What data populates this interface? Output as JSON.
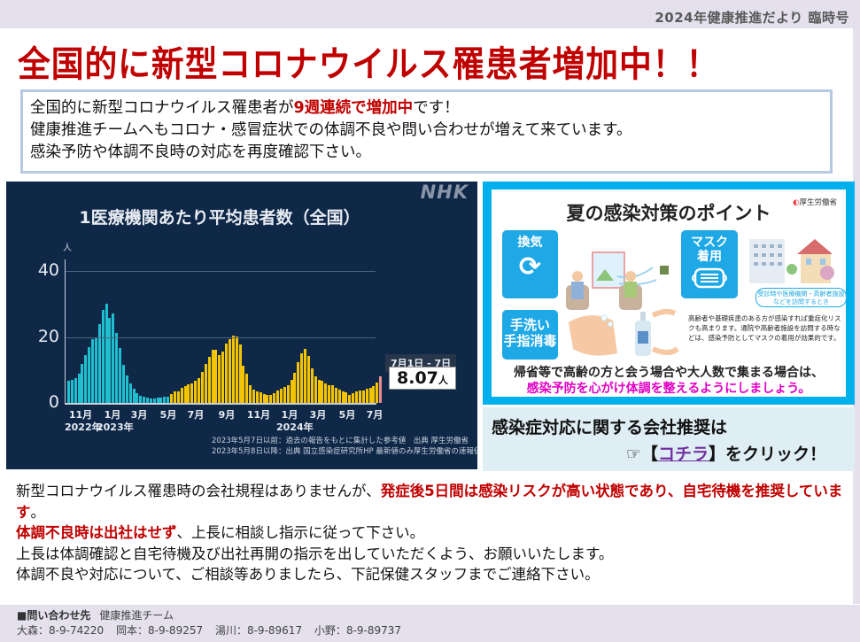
{
  "header": {
    "issue_label": "2024年健康推進だより 臨時号",
    "headline": "全国的に新型コロナウイルス罹患者増加中！！"
  },
  "summary": {
    "line1_pre": "全国的に新型コロナウイルス罹患者が",
    "line1_emph": "9週連続で増加中",
    "line1_post": "です！",
    "line2": "健康推進チームへもコロナ・感冒症状での体調不良や問い合わせが増えて来ています。",
    "line3": "感染予防や体調不良時の対応を再度確認下さい。"
  },
  "chart_panel": {
    "brand": "NHK",
    "footnote1": "2023年5月7日以前：過去の報告をもとに集計した参考値　出典 厚生労働省",
    "footnote2": "2023年5月8日以降：出典 国立感染症研究所HP 最新値のみ厚生労働省の速報値",
    "callout_date": "7月1日 - 7日",
    "callout_value": "8.07",
    "callout_unit": "人"
  },
  "chart_data": {
    "type": "bar",
    "title": "1医療機関あたり平均患者数（全国）",
    "xlabel": "",
    "ylabel": "人",
    "ylim": [
      0,
      40
    ],
    "yticks": [
      0,
      20,
      40
    ],
    "grid": true,
    "legend": "none",
    "x_tick_labels": [
      "11月",
      "1月",
      "3月",
      "5月",
      "7月",
      "9月",
      "11月",
      "1月",
      "3月",
      "5月",
      "7月"
    ],
    "x_year_labels": [
      "2022年",
      "2023年",
      "2024年"
    ],
    "period": "weekly, 2022年10月 〜 2024年7月1日-7日",
    "series": [
      {
        "name": "過去の報告をもとに集計した参考値（〜2023年5月7日）",
        "color": "#1fbfcf",
        "values": [
          6.8,
          7.0,
          7.4,
          8.8,
          11.8,
          14.4,
          17.0,
          19.4,
          20.0,
          23.8,
          28.3,
          30.0,
          25.8,
          27.2,
          21.3,
          16.8,
          11.6,
          8.3,
          5.9,
          4.3,
          2.9,
          2.2,
          1.8,
          1.5,
          1.4,
          1.4,
          1.5,
          1.7,
          1.8,
          1.8
        ]
      },
      {
        "name": "国立感染症研究所（2023年5月8日〜）",
        "color": "#f5c400",
        "values": [
          2.6,
          3.5,
          3.6,
          4.5,
          5.1,
          5.6,
          6.0,
          6.6,
          7.6,
          9.3,
          11.8,
          14.0,
          16.1,
          16.0,
          14.4,
          15.6,
          18.1,
          19.3,
          20.5,
          20.2,
          17.8,
          11.2,
          9.0,
          5.5,
          4.0,
          3.5,
          3.1,
          2.6,
          2.3,
          2.5,
          3.0,
          3.9,
          4.4,
          4.9,
          5.5,
          7.1,
          9.2,
          12.3,
          15.1,
          16.5,
          14.3,
          10.5,
          8.0,
          7.0,
          6.7,
          6.0,
          5.5,
          5.3,
          4.6,
          4.0,
          3.6,
          3.3,
          2.3,
          3.0,
          3.5,
          3.7,
          3.8,
          4.3,
          4.6,
          5.0,
          6.1
        ]
      },
      {
        "name": "最新値（厚生労働省の速報値）",
        "color": "#e88d8d",
        "values": [
          8.07
        ]
      }
    ]
  },
  "poster": {
    "title": "夏の感染対策のポイント",
    "publisher": "厚生労働省",
    "tile_ventilation": "換気",
    "tile_mask_line1": "マスク",
    "tile_mask_line2": "着用",
    "tile_wash_line1": "手洗い",
    "tile_wash_line2": "手指消毒",
    "mask_pill_line1": "受診時や医療機関・高齢者施設",
    "mask_pill_line2": "などを訪問するとき",
    "mask_note": "高齢者や基礎疾患のある方が感染すれば重症化リスクも高まります。通院や高齢者施設を訪問する時などは、感染予防としてマスクの着用が効果的です。",
    "footer_line1": "帰省等で高齢の方と会う場合や大人数で集まる場合は、",
    "footer_line2": "感染予防を心がけ体調を整えるようにしましょう。"
  },
  "company_link": {
    "line1": "感染症対応に関する会社推奨は",
    "pointer": "☞【",
    "link_text": "コチラ",
    "post": "】をクリック！"
  },
  "policy": {
    "p1_pre": "新型コロナウイルス罹患時の会社規程はありませんが、",
    "p1_emph": "発症後5日間は感染リスクが高い状態であり、自宅待機を推奨しています",
    "p1_post": "。",
    "p2_emph": "体調不良時は出社はせず",
    "p2_post": "、上長に相談し指示に従って下さい。",
    "p3": "上長は体調確認と自宅待機及び出社再開の指示を出していただくよう、お願いいたします。",
    "p4": "体調不良や対応について、ご相談等ありましたら、下記保健スタッフまでご連絡下さい。"
  },
  "contact": {
    "label": "■問い合わせ先",
    "team": "健康推進チーム",
    "staff": [
      {
        "name": "大森",
        "ext": "8-9-74220"
      },
      {
        "name": "岡本",
        "ext": "8-9-89257"
      },
      {
        "name": "湯川",
        "ext": "8-9-89617"
      },
      {
        "name": "小野",
        "ext": "8-9-89737"
      }
    ]
  }
}
